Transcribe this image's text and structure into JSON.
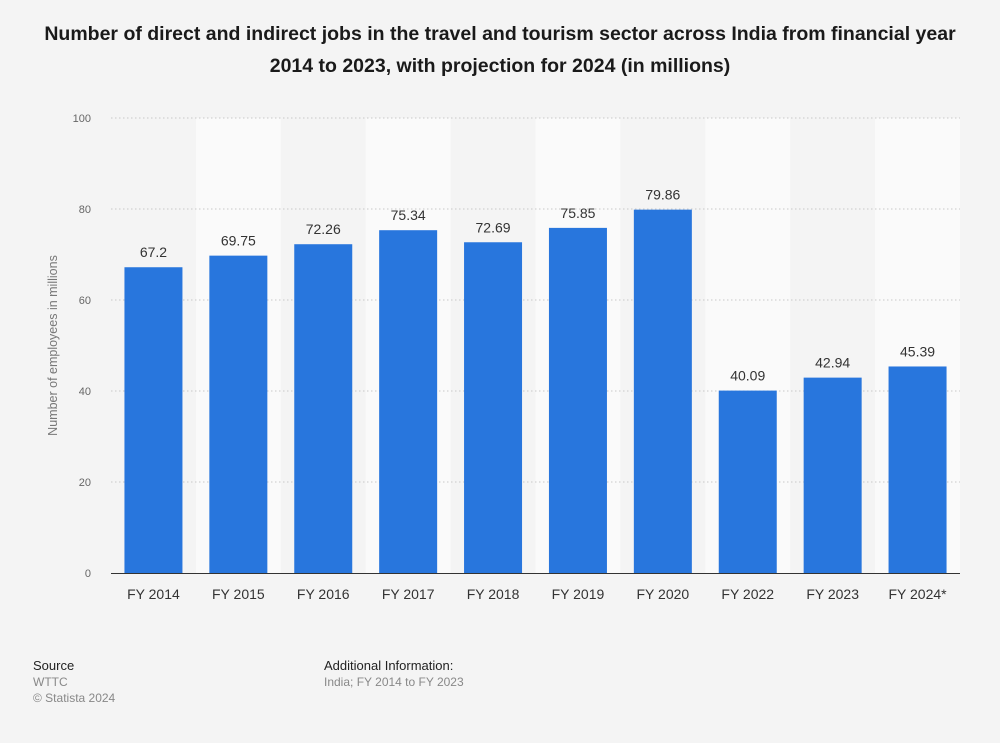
{
  "chart_data": {
    "type": "bar",
    "title": "Number of direct and indirect jobs in the travel and tourism sector across India from financial year 2014 to 2023, with projection for 2024 (in millions)",
    "ylabel": "Number of employees in millions",
    "xlabel": "",
    "categories": [
      "FY 2014",
      "FY 2015",
      "FY 2016",
      "FY 2017",
      "FY 2018",
      "FY 2019",
      "FY 2020",
      "FY 2022",
      "FY 2023",
      "FY 2024*"
    ],
    "values": [
      67.2,
      69.75,
      72.26,
      75.34,
      72.69,
      75.85,
      79.86,
      40.09,
      42.94,
      45.39
    ],
    "value_labels": [
      "67.2",
      "69.75",
      "72.26",
      "75.34",
      "72.69",
      "75.85",
      "79.86",
      "40.09",
      "42.94",
      "45.39"
    ],
    "ylim": [
      0,
      100
    ],
    "yticks": [
      0,
      20,
      40,
      60,
      80,
      100
    ],
    "grid": true,
    "bar_color": "#2876dd"
  },
  "footer": {
    "source_heading": "Source",
    "source_name": "WTTC",
    "copyright": "© Statista 2024",
    "info_heading": "Additional Information:",
    "info_text": "India; FY 2014 to FY 2023"
  }
}
